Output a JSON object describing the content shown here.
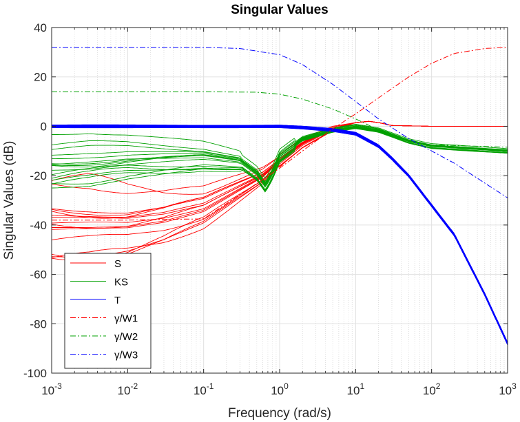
{
  "chart_data": {
    "type": "line",
    "title": "Singular Values",
    "xlabel": "Frequency (rad/s)",
    "ylabel": "Singular Values (dB)",
    "xscale": "log",
    "xlim": [
      0.001,
      1000
    ],
    "ylim": [
      -100,
      40
    ],
    "x_ticks": [
      {
        "value": 0.001,
        "base": "10",
        "exp": "-3"
      },
      {
        "value": 0.01,
        "base": "10",
        "exp": "-2"
      },
      {
        "value": 0.1,
        "base": "10",
        "exp": "-1"
      },
      {
        "value": 1,
        "base": "10",
        "exp": "0"
      },
      {
        "value": 10,
        "base": "10",
        "exp": "1"
      },
      {
        "value": 100,
        "base": "10",
        "exp": "2"
      },
      {
        "value": 1000,
        "base": "10",
        "exp": "3"
      }
    ],
    "y_ticks": [
      {
        "value": 40,
        "label": "40"
      },
      {
        "value": 20,
        "label": "20"
      },
      {
        "value": 0,
        "label": "0"
      },
      {
        "value": -20,
        "label": "-20"
      },
      {
        "value": -40,
        "label": "-40"
      },
      {
        "value": -60,
        "label": "-60"
      },
      {
        "value": -80,
        "label": "-80"
      },
      {
        "value": -100,
        "label": "-100"
      }
    ],
    "grid": true,
    "minor_grid": true,
    "legend": {
      "location": "bottom-left",
      "entries": [
        {
          "label": "S",
          "color": "#ff0000",
          "style": "solid"
        },
        {
          "label": "KS",
          "color": "#00a000",
          "style": "solid"
        },
        {
          "label": "T",
          "color": "#0000ff",
          "style": "solid"
        },
        {
          "label": "γ/W1",
          "color": "#ff0000",
          "style": "dashdot"
        },
        {
          "label": "γ/W2",
          "color": "#00a000",
          "style": "dashdot"
        },
        {
          "label": "γ/W3",
          "color": "#0000ff",
          "style": "dashdot"
        }
      ]
    },
    "series": [
      {
        "name": "S",
        "color": "#ff0000",
        "style": "solid",
        "bundle": true,
        "x": [
          0.001,
          0.003,
          0.01,
          0.03,
          0.1,
          0.3,
          0.6,
          1,
          2,
          5,
          10,
          15,
          20,
          30,
          100,
          1000
        ],
        "y": [
          -39,
          -39,
          -39,
          -37,
          -33,
          -25,
          -20,
          -14,
          -7,
          -1,
          1.5,
          2,
          1.5,
          0.3,
          0,
          0
        ]
      },
      {
        "name": "KS",
        "color": "#00a000",
        "style": "solid",
        "bundle": true,
        "x": [
          0.001,
          0.003,
          0.01,
          0.03,
          0.1,
          0.3,
          0.5,
          0.65,
          0.8,
          1,
          2,
          5,
          10,
          20,
          50,
          100,
          1000
        ],
        "y": [
          -14,
          -13,
          -12,
          -12,
          -12,
          -14,
          -19,
          -24,
          -19,
          -12,
          -5,
          -1.5,
          0,
          -1.5,
          -6,
          -8,
          -10
        ]
      },
      {
        "name": "T",
        "color": "#0000ff",
        "style": "solid",
        "bundle": true,
        "x": [
          0.001,
          0.01,
          0.1,
          1,
          2,
          5,
          10,
          20,
          30,
          50,
          100,
          200,
          500,
          1000
        ],
        "y": [
          0,
          0,
          0,
          0,
          -0.5,
          -1.5,
          -3,
          -8,
          -13,
          -20,
          -32,
          -44,
          -68,
          -88
        ]
      },
      {
        "name": "γ/W1",
        "color": "#ff0000",
        "style": "dashdot",
        "x": [
          0.001,
          0.01,
          0.1,
          1,
          2,
          5,
          10,
          20,
          50,
          100,
          200,
          500,
          1000
        ],
        "y": [
          -38,
          -38,
          -37.5,
          -17,
          -10,
          -1,
          5,
          11.5,
          20,
          25.5,
          29.5,
          31.5,
          32
        ]
      },
      {
        "name": "γ/W2",
        "color": "#00a000",
        "style": "dashdot",
        "x": [
          0.001,
          0.01,
          0.1,
          0.5,
          1,
          2,
          5,
          10,
          20,
          50,
          100,
          1000
        ],
        "y": [
          14,
          14,
          14,
          13.8,
          13,
          11,
          7,
          3,
          -1.5,
          -6,
          -7.5,
          -8.5
        ]
      },
      {
        "name": "γ/W3",
        "color": "#0000ff",
        "style": "dashdot",
        "x": [
          0.001,
          0.01,
          0.1,
          0.3,
          1,
          2,
          5,
          10,
          20,
          50,
          100,
          200,
          500,
          1000
        ],
        "y": [
          32,
          32,
          32,
          31.5,
          29,
          25,
          17,
          10,
          3,
          -5,
          -10,
          -15,
          -23,
          -29
        ]
      }
    ]
  }
}
